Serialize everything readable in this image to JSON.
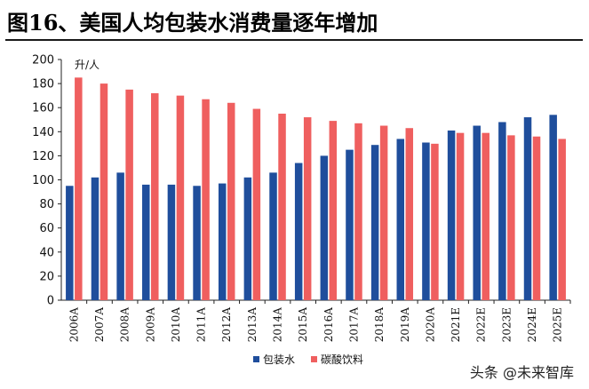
{
  "title": "图16、美国人均包装水消费量逐年增加",
  "watermark": "头条 @未来智库",
  "chart_data": {
    "type": "bar",
    "title": "图16、美国人均包装水消费量逐年增加",
    "ylabel": "升/人",
    "xlabel": "",
    "ylim": [
      0,
      200
    ],
    "yticks": [
      0,
      20,
      40,
      60,
      80,
      100,
      120,
      140,
      160,
      180,
      200
    ],
    "grid": false,
    "legend": "bottom-center",
    "categories": [
      "2006A",
      "2007A",
      "2008A",
      "2009A",
      "2010A",
      "2011A",
      "2012A",
      "2013A",
      "2014A",
      "2015A",
      "2016A",
      "2017A",
      "2018A",
      "2019A",
      "2020A",
      "2021E",
      "2022E",
      "2023E",
      "2024E",
      "2025E"
    ],
    "series": [
      {
        "name": "包装水",
        "color": "#1f4e9c",
        "values": [
          95,
          102,
          106,
          96,
          96,
          95,
          97,
          102,
          106,
          114,
          120,
          125,
          129,
          134,
          131,
          141,
          145,
          148,
          152,
          154
        ]
      },
      {
        "name": "碳酸饮料",
        "color": "#ef5f5f",
        "values": [
          185,
          180,
          175,
          172,
          170,
          167,
          164,
          159,
          155,
          152,
          149,
          147,
          145,
          143,
          130,
          139,
          139,
          137,
          136,
          134
        ]
      }
    ]
  }
}
